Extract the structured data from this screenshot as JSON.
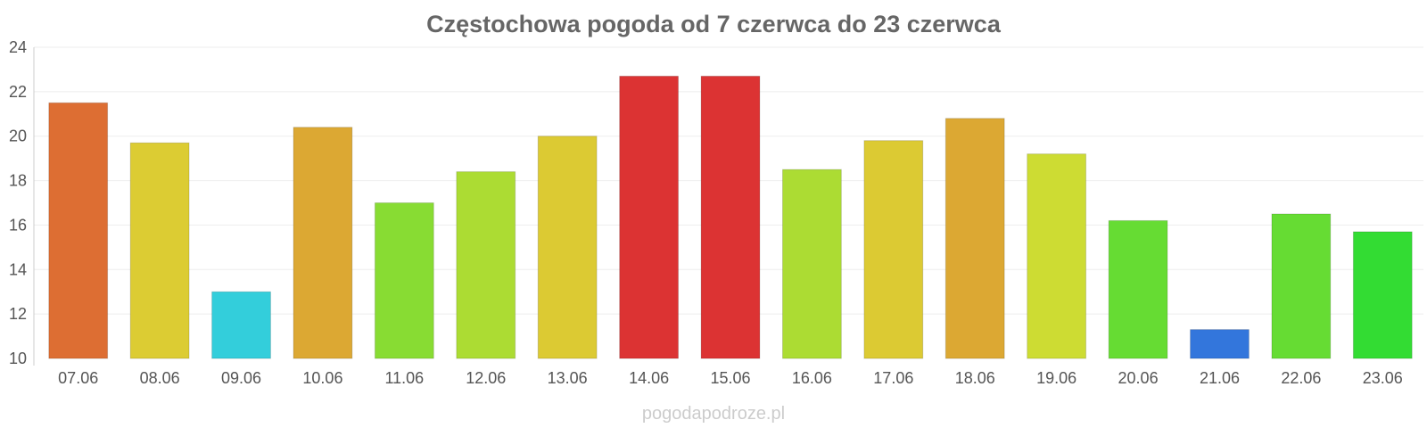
{
  "chart_data": {
    "type": "bar",
    "title": "Częstochowa pogoda od 7 czerwca do 23 czerwca",
    "xlabel": "",
    "ylabel": "",
    "categories": [
      "07.06",
      "08.06",
      "09.06",
      "10.06",
      "11.06",
      "12.06",
      "13.06",
      "14.06",
      "15.06",
      "16.06",
      "17.06",
      "18.06",
      "19.06",
      "20.06",
      "21.06",
      "22.06",
      "23.06"
    ],
    "values": [
      21.5,
      19.7,
      13.0,
      20.4,
      17.0,
      18.4,
      20.0,
      22.7,
      22.7,
      18.5,
      19.8,
      20.8,
      19.2,
      16.2,
      11.3,
      16.5,
      15.7
    ],
    "colors": [
      "#dd6e33",
      "#dccc33",
      "#33cedb",
      "#dca833",
      "#88dc33",
      "#acdc33",
      "#dcca33",
      "#dc3333",
      "#dc3333",
      "#acdc33",
      "#dcca33",
      "#dca833",
      "#cddc33",
      "#66dc33",
      "#3376dc",
      "#66dc33",
      "#33dc33"
    ],
    "yticks": [
      10,
      12,
      14,
      16,
      18,
      20,
      22,
      24
    ],
    "ylim": [
      10,
      24
    ],
    "grid": true,
    "legend": "none"
  },
  "watermark": "pogodapodroze.pl"
}
